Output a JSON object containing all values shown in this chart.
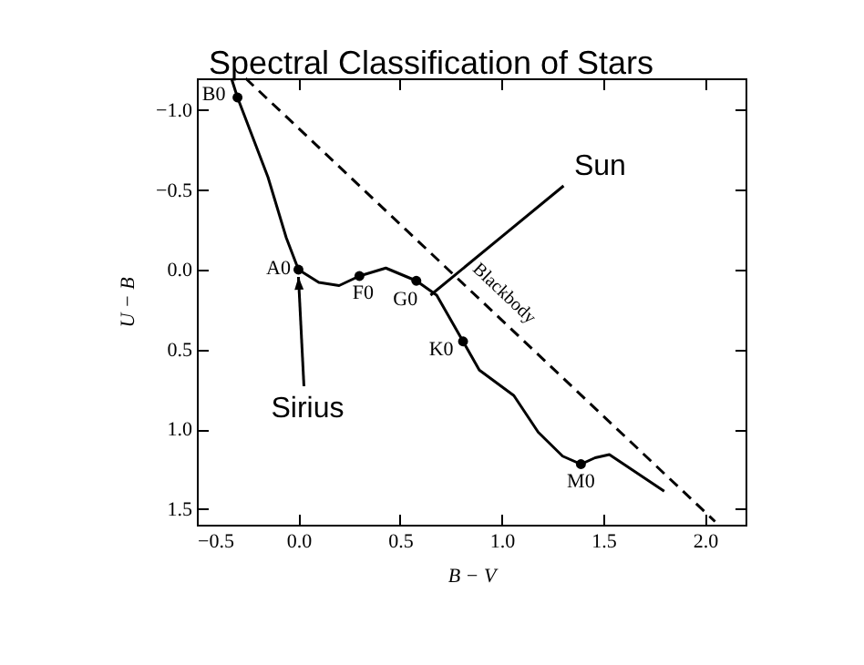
{
  "chart_data": {
    "type": "line",
    "title": "Spectral Classification of Stars",
    "xlabel": "B − V",
    "ylabel": "U − B",
    "xlim": [
      -0.5,
      2.2
    ],
    "ylim": [
      1.6,
      -1.2
    ],
    "xticks": [
      {
        "value": -0.5,
        "label": "−0.5"
      },
      {
        "value": 0,
        "label": "0.0"
      },
      {
        "value": 0.5,
        "label": "0.5"
      },
      {
        "value": 1,
        "label": "1.0"
      },
      {
        "value": 1.5,
        "label": "1.5"
      },
      {
        "value": 2,
        "label": "2.0"
      }
    ],
    "yticks": [
      {
        "value": -1,
        "label": "−1.0"
      },
      {
        "value": -0.5,
        "label": "−0.5"
      },
      {
        "value": 0,
        "label": "0.0"
      },
      {
        "value": 0.5,
        "label": "0.5"
      },
      {
        "value": 1,
        "label": "1.0"
      },
      {
        "value": 1.5,
        "label": "1.5"
      }
    ],
    "series": [
      {
        "color": "#000000",
        "line_style": "solid",
        "x": [
          -0.33,
          -0.3,
          -0.15,
          -0.06,
          0.0,
          0.1,
          0.2,
          0.3,
          0.43,
          0.58,
          0.68,
          0.81,
          0.89,
          1.06,
          1.18,
          1.3,
          1.39,
          1.46,
          1.53,
          1.8
        ],
        "values": [
          -1.2,
          -1.08,
          -0.58,
          -0.2,
          0.0,
          0.08,
          0.1,
          0.04,
          -0.01,
          0.07,
          0.16,
          0.45,
          0.63,
          0.79,
          1.02,
          1.17,
          1.22,
          1.18,
          1.16,
          1.39
        ]
      },
      {
        "type": "scatter",
        "color": "#000000",
        "marker": "circle",
        "x": [
          -0.3,
          0.0,
          0.3,
          0.58,
          0.81,
          1.39
        ],
        "values": [
          -1.08,
          0.0,
          0.04,
          0.07,
          0.45,
          1.22
        ]
      },
      {
        "name": "Blackbody",
        "color": "#000000",
        "line_style": "dashed",
        "x": [
          -0.26,
          2.05
        ],
        "values": [
          -1.2,
          1.58
        ]
      }
    ],
    "annotations": [
      {
        "text": "B0",
        "x": -0.3,
        "y": -1.08
      },
      {
        "text": "A0",
        "x": 0.0,
        "y": 0.0
      },
      {
        "text": "F0",
        "x": 0.3,
        "y": 0.04
      },
      {
        "text": "G0",
        "x": 0.58,
        "y": 0.07
      },
      {
        "text": "K0",
        "x": 0.81,
        "y": 0.45
      },
      {
        "text": "M0",
        "x": 1.39,
        "y": 1.22
      },
      {
        "text": "Sun",
        "x": 0.65,
        "y": 0.16
      },
      {
        "text": "Sirius",
        "x": 0.0,
        "y": 0.0
      }
    ],
    "grid": false
  }
}
